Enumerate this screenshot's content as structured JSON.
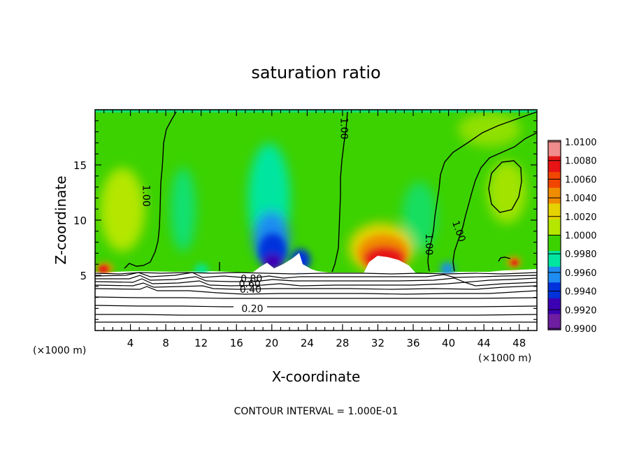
{
  "chart_data": {
    "type": "heatmap",
    "title": "saturation ratio",
    "xlabel": "X-coordinate",
    "ylabel": "Z-coordinate",
    "x_unit": "(×1000 m)",
    "x_unit_right": "(×1000 m)",
    "xlim": [
      0,
      50
    ],
    "ylim": [
      0,
      20
    ],
    "x_ticks": [
      4,
      8,
      12,
      16,
      20,
      24,
      28,
      32,
      36,
      40,
      44,
      48
    ],
    "y_ticks": [
      5,
      10,
      15
    ],
    "footer": "CONTOUR INTERVAL = 1.000E-01",
    "colorbar": {
      "levels": [
        "1.0100",
        "1.0080",
        "1.0060",
        "1.0040",
        "1.0020",
        "1.0000",
        "0.9980",
        "0.9960",
        "0.9940",
        "0.9920",
        "0.9900"
      ],
      "colors": [
        "#f08c8c",
        "#e61414",
        "#f04600",
        "#f08c00",
        "#e6d200",
        "#b4e600",
        "#3cd200",
        "#00e6a0",
        "#1e8cf0",
        "#0032dc",
        "#3c00b4",
        "#6e1ea0"
      ]
    },
    "contour_labels": [
      {
        "text": "1.00",
        "x": 5.8,
        "y": 12.2,
        "angle": 90
      },
      {
        "text": "1.00",
        "x": 28.2,
        "y": 18.3,
        "angle": 90
      },
      {
        "text": "1.00",
        "x": 37.8,
        "y": 7.8,
        "angle": 90
      },
      {
        "text": "1.00",
        "x": 41.2,
        "y": 9.0,
        "angle": 70
      },
      {
        "text": "0.80",
        "x": 17.7,
        "y": 4.7,
        "angle": 0
      },
      {
        "text": "0.60",
        "x": 17.5,
        "y": 4.25,
        "angle": 0
      },
      {
        "text": "0.40",
        "x": 17.6,
        "y": 3.75,
        "angle": 0
      },
      {
        "text": "0.20",
        "x": 17.8,
        "y": 2.0,
        "angle": 0
      }
    ],
    "grid": false
  }
}
